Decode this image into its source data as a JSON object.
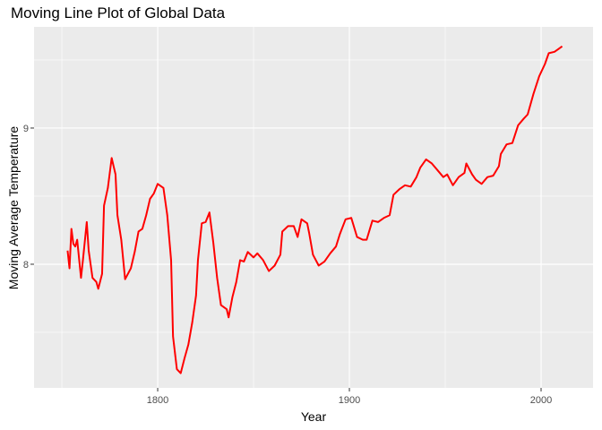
{
  "chart_data": {
    "type": "line",
    "title": "Moving Line Plot of Global Data",
    "xlabel": "Year",
    "ylabel": "Moving Average Temperature",
    "x": [
      1753,
      1754,
      1755,
      1756,
      1757,
      1758,
      1760,
      1761,
      1763,
      1764,
      1766,
      1768,
      1769,
      1771,
      1772,
      1774,
      1776,
      1778,
      1779,
      1781,
      1783,
      1786,
      1788,
      1790,
      1792,
      1794,
      1796,
      1798,
      1800,
      1803,
      1805,
      1807,
      1808,
      1810,
      1812,
      1814,
      1816,
      1818,
      1820,
      1821,
      1823,
      1825,
      1827,
      1829,
      1831,
      1833,
      1836,
      1837,
      1839,
      1841,
      1843,
      1845,
      1847,
      1850,
      1852,
      1855,
      1858,
      1861,
      1864,
      1865,
      1868,
      1871,
      1873,
      1875,
      1878,
      1879,
      1881,
      1884,
      1887,
      1890,
      1893,
      1895,
      1898,
      1901,
      1904,
      1907,
      1909,
      1912,
      1915,
      1918,
      1921,
      1923,
      1926,
      1929,
      1932,
      1935,
      1937,
      1940,
      1943,
      1946,
      1949,
      1951,
      1954,
      1957,
      1960,
      1961,
      1964,
      1966,
      1969,
      1972,
      1975,
      1978,
      1979,
      1982,
      1985,
      1988,
      1991,
      1993,
      1996,
      1999,
      2002,
      2004,
      2007,
      2009,
      2011
    ],
    "series": [
      {
        "name": "Moving Average Temperature",
        "color": "#ff0000",
        "values": [
          8.1,
          7.97,
          8.26,
          8.15,
          8.13,
          8.18,
          7.9,
          8.03,
          8.31,
          8.1,
          7.9,
          7.87,
          7.82,
          7.93,
          8.43,
          8.56,
          8.78,
          8.66,
          8.36,
          8.18,
          7.89,
          7.97,
          8.09,
          8.24,
          8.26,
          8.36,
          8.48,
          8.52,
          8.59,
          8.56,
          8.36,
          8.03,
          7.47,
          7.23,
          7.2,
          7.31,
          7.41,
          7.57,
          7.77,
          8.03,
          8.3,
          8.31,
          8.38,
          8.16,
          7.9,
          7.7,
          7.67,
          7.61,
          7.76,
          7.87,
          8.03,
          8.02,
          8.09,
          8.05,
          8.08,
          8.03,
          7.95,
          7.99,
          8.07,
          8.24,
          8.28,
          8.28,
          8.2,
          8.33,
          8.3,
          8.23,
          8.07,
          7.99,
          8.02,
          8.08,
          8.13,
          8.22,
          8.33,
          8.34,
          8.2,
          8.18,
          8.18,
          8.32,
          8.31,
          8.34,
          8.36,
          8.51,
          8.55,
          8.58,
          8.57,
          8.64,
          8.71,
          8.77,
          8.74,
          8.69,
          8.64,
          8.66,
          8.58,
          8.64,
          8.67,
          8.74,
          8.66,
          8.62,
          8.59,
          8.64,
          8.65,
          8.72,
          8.81,
          8.88,
          8.89,
          9.02,
          9.07,
          9.1,
          9.25,
          9.38,
          9.47,
          9.55,
          9.56,
          9.58,
          9.6
        ]
      }
    ],
    "xlim": [
      1735.5,
      2027.1
    ],
    "ylim": [
      7.092,
      9.743
    ],
    "xticks": [
      1800,
      1900,
      2000
    ],
    "yticks": [
      8,
      9
    ],
    "xminor": [
      1750,
      1850,
      1950
    ],
    "yminor": [
      7.5,
      8.5,
      9.5
    ],
    "grid": true,
    "legend": false
  }
}
